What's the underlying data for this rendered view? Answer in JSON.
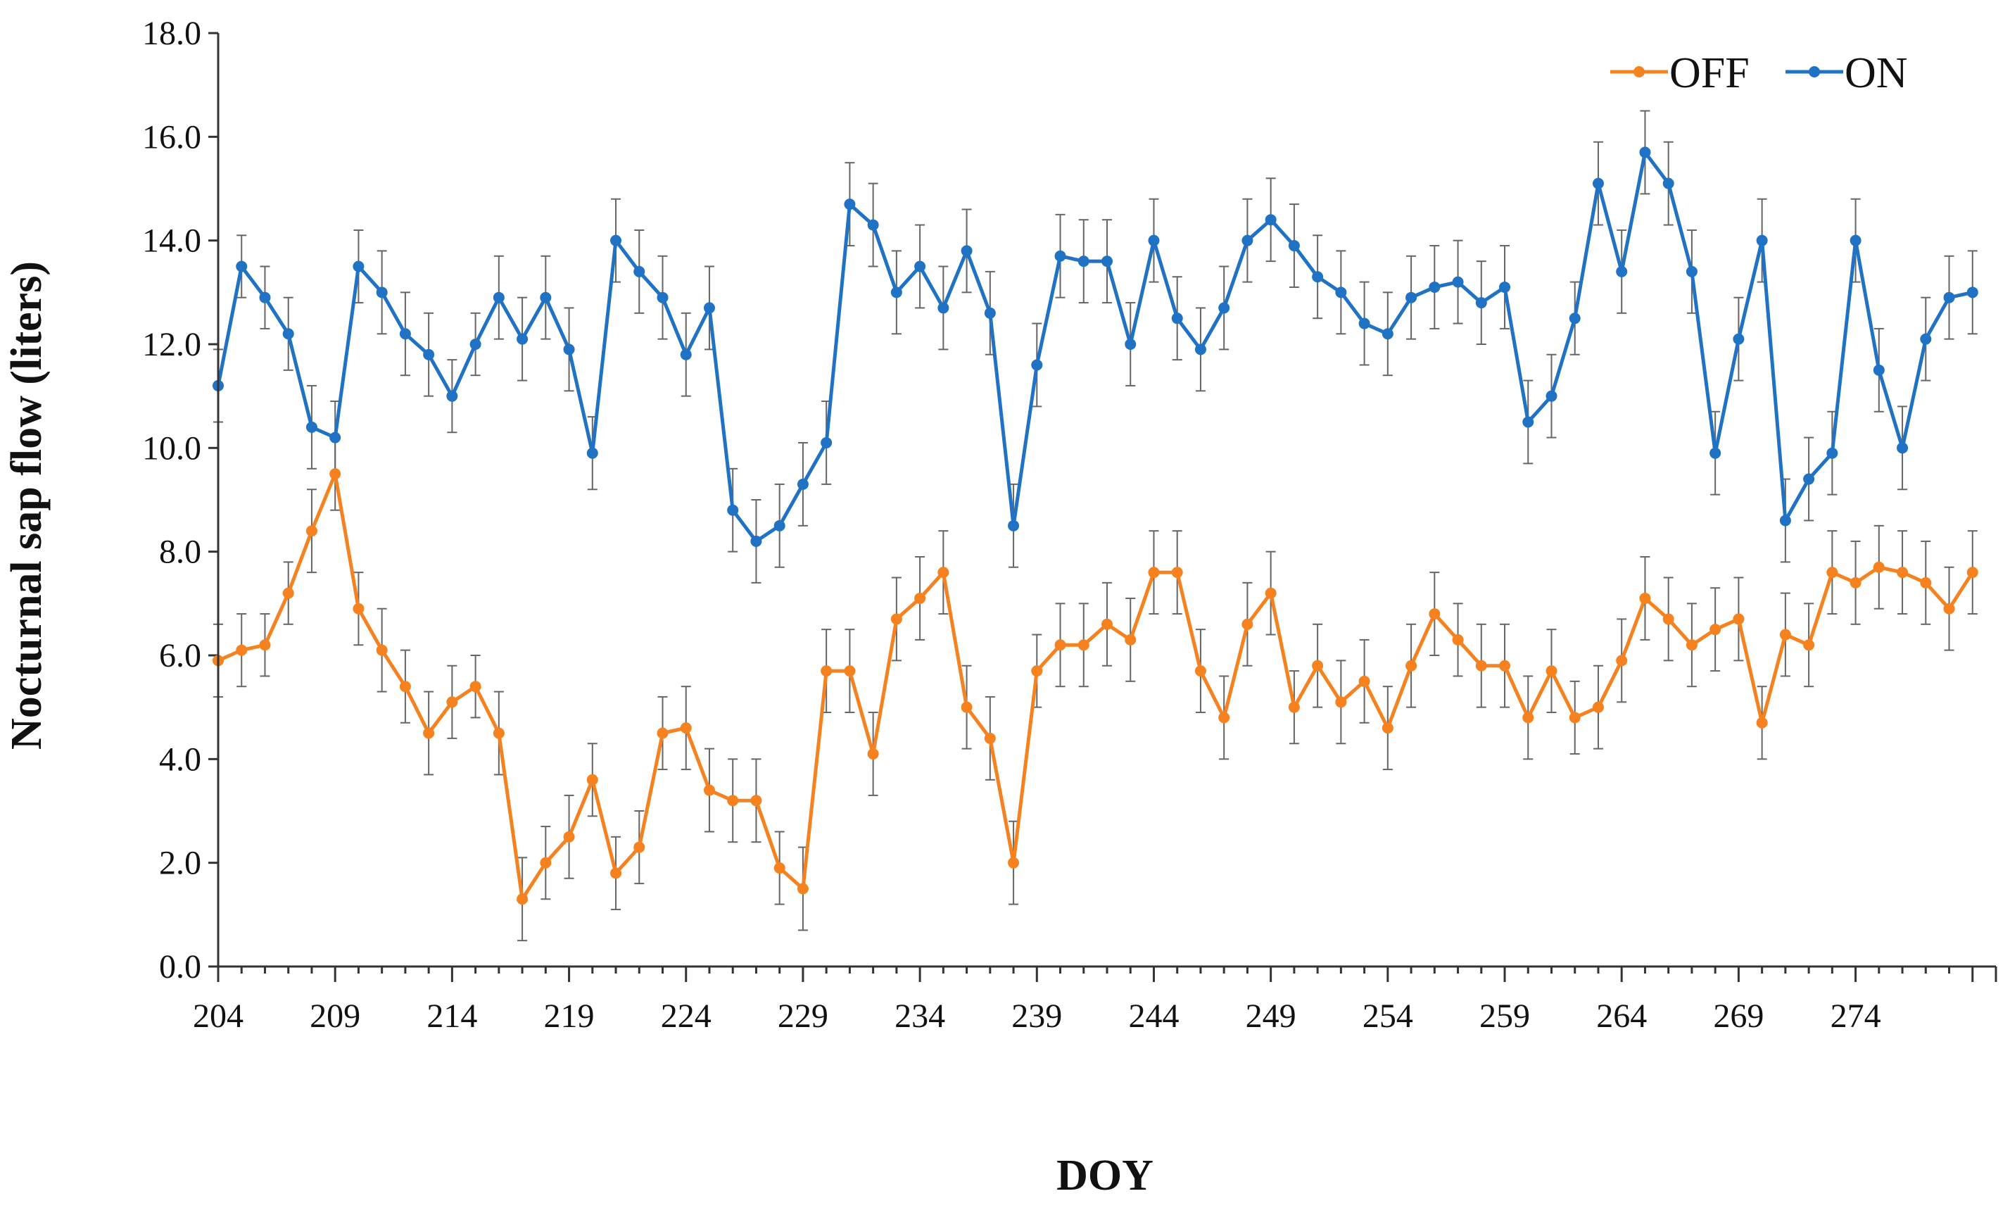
{
  "chart_data": {
    "type": "line",
    "title": "",
    "xlabel": "DOY",
    "ylabel": "Nocturnal sap flow (liters)",
    "x": [
      204,
      205,
      206,
      207,
      208,
      209,
      210,
      211,
      212,
      213,
      214,
      215,
      216,
      217,
      218,
      219,
      220,
      221,
      222,
      223,
      224,
      225,
      226,
      227,
      228,
      229,
      230,
      231,
      232,
      233,
      234,
      235,
      236,
      237,
      238,
      239,
      240,
      241,
      242,
      243,
      244,
      245,
      246,
      247,
      248,
      249,
      250,
      251,
      252,
      253,
      254,
      255,
      256,
      257,
      258,
      259,
      260,
      261,
      262,
      263,
      264,
      265,
      266,
      267,
      268,
      269,
      270,
      271,
      272,
      273,
      274,
      275,
      276,
      277,
      278,
      279
    ],
    "xticks": [
      "204",
      "209",
      "214",
      "219",
      "224",
      "229",
      "234",
      "239",
      "244",
      "249",
      "254",
      "259",
      "264",
      "269",
      "274"
    ],
    "yticks": [
      "0.0",
      "2.0",
      "4.0",
      "6.0",
      "8.0",
      "10.0",
      "12.0",
      "14.0",
      "16.0",
      "18.0"
    ],
    "xlim": [
      204,
      280
    ],
    "ylim": [
      0,
      18
    ],
    "grid": false,
    "legend_position": "top-right",
    "series": [
      {
        "name": "OFF",
        "color": "#f5821f",
        "values": [
          5.9,
          6.1,
          6.2,
          7.2,
          8.4,
          9.5,
          6.9,
          6.1,
          5.4,
          4.5,
          5.1,
          5.4,
          4.5,
          1.3,
          2.0,
          2.5,
          3.6,
          1.8,
          2.3,
          4.5,
          4.6,
          3.4,
          3.2,
          3.2,
          1.9,
          1.5,
          5.7,
          5.7,
          4.1,
          6.7,
          7.1,
          7.6,
          5.0,
          4.4,
          2.0,
          5.7,
          6.2,
          6.2,
          6.6,
          6.3,
          7.6,
          7.6,
          5.7,
          4.8,
          6.6,
          7.2,
          5.0,
          5.8,
          5.1,
          5.5,
          4.6,
          5.8,
          6.8,
          6.3,
          5.8,
          5.8,
          4.8,
          5.7,
          4.8,
          5.0,
          5.9,
          7.1,
          6.7,
          6.2,
          6.5,
          6.7,
          4.7,
          6.4,
          6.2,
          7.6,
          7.4,
          7.7,
          7.6,
          7.4,
          6.9,
          7.6
        ],
        "errors": [
          0.7,
          0.7,
          0.6,
          0.6,
          0.8,
          0.7,
          0.7,
          0.8,
          0.7,
          0.8,
          0.7,
          0.6,
          0.8,
          0.8,
          0.7,
          0.8,
          0.7,
          0.7,
          0.7,
          0.7,
          0.8,
          0.8,
          0.8,
          0.8,
          0.7,
          0.8,
          0.8,
          0.8,
          0.8,
          0.8,
          0.8,
          0.8,
          0.8,
          0.8,
          0.8,
          0.7,
          0.8,
          0.8,
          0.8,
          0.8,
          0.8,
          0.8,
          0.8,
          0.8,
          0.8,
          0.8,
          0.7,
          0.8,
          0.8,
          0.8,
          0.8,
          0.8,
          0.8,
          0.7,
          0.8,
          0.8,
          0.8,
          0.8,
          0.7,
          0.8,
          0.8,
          0.8,
          0.8,
          0.8,
          0.8,
          0.8,
          0.7,
          0.8,
          0.8,
          0.8,
          0.8,
          0.8,
          0.8,
          0.8,
          0.8,
          0.8
        ]
      },
      {
        "name": "ON",
        "color": "#1f72c4",
        "values": [
          11.2,
          13.5,
          12.9,
          12.2,
          10.4,
          10.2,
          13.5,
          13.0,
          12.2,
          11.8,
          11.0,
          12.0,
          12.9,
          12.1,
          12.9,
          11.9,
          9.9,
          14.0,
          13.4,
          12.9,
          11.8,
          12.7,
          8.8,
          8.2,
          8.5,
          9.3,
          10.1,
          14.7,
          14.3,
          13.0,
          13.5,
          12.7,
          13.8,
          12.6,
          8.5,
          11.6,
          13.7,
          13.6,
          13.6,
          12.0,
          14.0,
          12.5,
          11.9,
          12.7,
          14.0,
          14.4,
          13.9,
          13.3,
          13.0,
          12.4,
          12.2,
          12.9,
          13.1,
          13.2,
          12.8,
          13.1,
          10.5,
          11.0,
          12.5,
          15.1,
          13.4,
          15.7,
          15.1,
          13.4,
          9.9,
          12.1,
          14.0,
          8.6,
          9.4,
          9.9,
          14.0,
          11.5,
          10.0,
          12.1,
          12.9,
          13.0
        ],
        "errors": [
          0.7,
          0.6,
          0.6,
          0.7,
          0.8,
          0.7,
          0.7,
          0.8,
          0.8,
          0.8,
          0.7,
          0.6,
          0.8,
          0.8,
          0.8,
          0.8,
          0.7,
          0.8,
          0.8,
          0.8,
          0.8,
          0.8,
          0.8,
          0.8,
          0.8,
          0.8,
          0.8,
          0.8,
          0.8,
          0.8,
          0.8,
          0.8,
          0.8,
          0.8,
          0.8,
          0.8,
          0.8,
          0.8,
          0.8,
          0.8,
          0.8,
          0.8,
          0.8,
          0.8,
          0.8,
          0.8,
          0.8,
          0.8,
          0.8,
          0.8,
          0.8,
          0.8,
          0.8,
          0.8,
          0.8,
          0.8,
          0.8,
          0.8,
          0.7,
          0.8,
          0.8,
          0.8,
          0.8,
          0.8,
          0.8,
          0.8,
          0.8,
          0.8,
          0.8,
          0.8,
          0.8,
          0.8,
          0.8,
          0.8,
          0.8,
          0.8
        ]
      }
    ]
  }
}
